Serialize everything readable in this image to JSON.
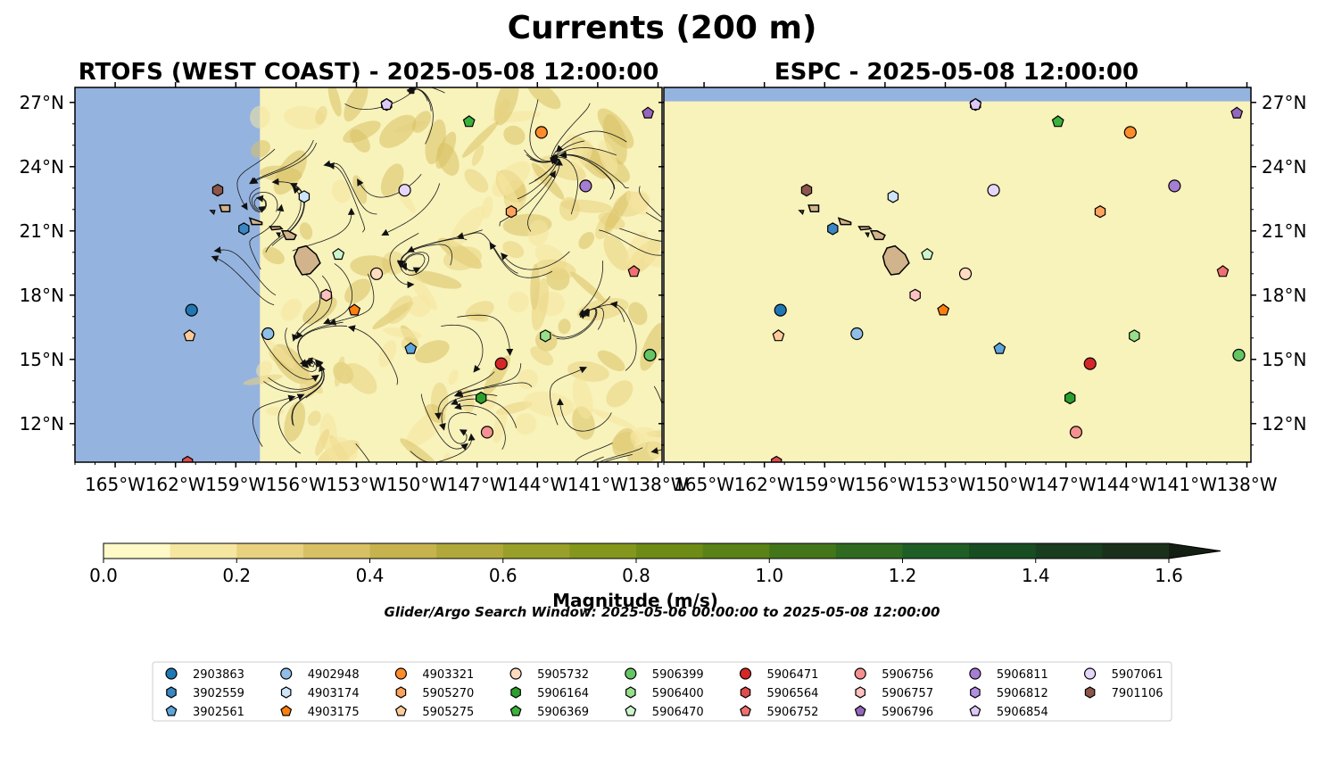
{
  "figure_title": "Currents (200 m)",
  "colors": {
    "land_blue": "#95b3df",
    "ocean_cream": "#f8f2bb",
    "island_fill": "#d2b48c",
    "streamline": "#1a1a1a"
  },
  "chart_data": [
    {
      "type": "heatmap",
      "name": "rtofs-panel",
      "title": "RTOFS (WEST COAST) - 2025-05-08 12:00:00",
      "xlim": [
        -167,
        -137.8
      ],
      "ylim": [
        10.2,
        27.7
      ],
      "data_lon_range": [
        -157.8,
        -137.8
      ],
      "xticks": [
        -165,
        -162,
        -159,
        -156,
        -153,
        -150,
        -147,
        -144,
        -141,
        -138
      ],
      "xtick_labels": [
        "165°W",
        "162°W",
        "159°W",
        "156°W",
        "153°W",
        "150°W",
        "147°W",
        "144°W",
        "141°W",
        "138°W"
      ],
      "yticks": [
        12,
        15,
        18,
        21,
        24,
        27
      ],
      "ytick_labels": [
        "12°N",
        "15°N",
        "18°N",
        "21°N",
        "24°N",
        "27°N"
      ],
      "ytick_side": "left",
      "streamlines": true
    },
    {
      "type": "heatmap",
      "name": "espc-panel",
      "title": "ESPC - 2025-05-08 12:00:00",
      "xlim": [
        -167,
        -137.8
      ],
      "ylim": [
        10.2,
        27.7
      ],
      "data_lat_top": 27.05,
      "xticks": [
        -165,
        -162,
        -159,
        -156,
        -153,
        -150,
        -147,
        -144,
        -141,
        -138
      ],
      "xtick_labels": [
        "165°W",
        "162°W",
        "159°W",
        "156°W",
        "153°W",
        "150°W",
        "147°W",
        "144°W",
        "141°W",
        "138°W"
      ],
      "yticks": [
        12,
        15,
        18,
        21,
        24,
        27
      ],
      "ytick_labels": [
        "12°N",
        "15°N",
        "18°N",
        "21°N",
        "24°N",
        "27°N"
      ],
      "ytick_side": "right",
      "streamlines": false
    }
  ],
  "colorbar": {
    "label": "Magnitude (m/s)",
    "min": 0.0,
    "max": 1.6,
    "extend": "max",
    "ticks": [
      0.0,
      0.2,
      0.4,
      0.6,
      0.8,
      1.0,
      1.2,
      1.4,
      1.6
    ],
    "tick_labels": [
      "0.0",
      "0.2",
      "0.4",
      "0.6",
      "0.8",
      "1.0",
      "1.2",
      "1.4",
      "1.6"
    ],
    "bins": [
      "#fffac7",
      "#f5e6a0",
      "#e8d27f",
      "#d8c165",
      "#c6b34e",
      "#b1a83c",
      "#99a02a",
      "#84971c",
      "#6e8c15",
      "#5a8216",
      "#437619",
      "#2f6a20",
      "#1f5e25",
      "#184d22",
      "#183d1f",
      "#1b301b"
    ],
    "extend_color": "#131f12"
  },
  "search_window_note": "Glider/Argo Search Window: 2025-05-06 00:00:00 to 2025-05-08 12:00:00",
  "legend": {
    "columns": 9,
    "placement": "bottom-center"
  },
  "floats": [
    {
      "id": "2903863",
      "marker": "circle",
      "color": "#1f77b4",
      "lon": -161.2,
      "lat": 17.3
    },
    {
      "id": "3902559",
      "marker": "hexagon",
      "color": "#3a87c2",
      "lon": -158.6,
      "lat": 21.1
    },
    {
      "id": "3902561",
      "marker": "pentagon",
      "color": "#5ea5dc",
      "lon": -150.3,
      "lat": 15.5
    },
    {
      "id": "4902948",
      "marker": "circle",
      "color": "#8fbfe8",
      "lon": -157.4,
      "lat": 16.2
    },
    {
      "id": "4903174",
      "marker": "hexagon",
      "color": "#cde5f7",
      "lon": -155.6,
      "lat": 22.6
    },
    {
      "id": "4903175",
      "marker": "pentagon",
      "color": "#ff7f0e",
      "lon": -153.1,
      "lat": 17.3
    },
    {
      "id": "4903321",
      "marker": "circle",
      "color": "#ff8c2a",
      "lon": -143.8,
      "lat": 25.6
    },
    {
      "id": "5905270",
      "marker": "hexagon",
      "color": "#ffa25c",
      "lon": -145.3,
      "lat": 21.9
    },
    {
      "id": "5905275",
      "marker": "pentagon",
      "color": "#ffcc99",
      "lon": -161.3,
      "lat": 16.1
    },
    {
      "id": "5905732",
      "marker": "circle",
      "color": "#ffdcc0",
      "lon": -152.0,
      "lat": 19.0
    },
    {
      "id": "5906164",
      "marker": "hexagon",
      "color": "#2ca02c",
      "lon": -146.8,
      "lat": 13.2
    },
    {
      "id": "5906369",
      "marker": "pentagon",
      "color": "#3bb23b",
      "lon": -147.4,
      "lat": 26.1
    },
    {
      "id": "5906399",
      "marker": "circle",
      "color": "#63c663",
      "lon": -138.4,
      "lat": 15.2
    },
    {
      "id": "5906400",
      "marker": "hexagon",
      "color": "#98df8a",
      "lon": -143.6,
      "lat": 16.1
    },
    {
      "id": "5906470",
      "marker": "pentagon",
      "color": "#cdf5cd",
      "lon": -153.9,
      "lat": 19.9
    },
    {
      "id": "5906471",
      "marker": "circle",
      "color": "#d62728",
      "lon": -145.8,
      "lat": 14.8
    },
    {
      "id": "5906564",
      "marker": "hexagon",
      "color": "#e04b4b",
      "lon": -161.4,
      "lat": 10.2
    },
    {
      "id": "5906752",
      "marker": "pentagon",
      "color": "#f07070",
      "lon": -139.2,
      "lat": 19.1
    },
    {
      "id": "5906756",
      "marker": "circle",
      "color": "#f59090",
      "lon": -146.5,
      "lat": 11.6
    },
    {
      "id": "5906757",
      "marker": "hexagon",
      "color": "#ffc0c0",
      "lon": -154.5,
      "lat": 18.0
    },
    {
      "id": "5906796",
      "marker": "pentagon",
      "color": "#9467bd",
      "lon": -138.5,
      "lat": 26.5
    },
    {
      "id": "5906811",
      "marker": "circle",
      "color": "#a57dd2",
      "lon": -141.6,
      "lat": 23.1
    },
    {
      "id": "5906812",
      "marker": "hexagon",
      "color": "#b38ee0",
      "lon": -151.5,
      "lat": 26.9
    },
    {
      "id": "5906854",
      "marker": "pentagon",
      "color": "#dcc9f5",
      "lon": -151.5,
      "lat": 26.9
    },
    {
      "id": "5907061",
      "marker": "circle",
      "color": "#e6d6fa",
      "lon": -150.6,
      "lat": 22.9
    },
    {
      "id": "7901106",
      "marker": "hexagon",
      "color": "#8c564b",
      "lon": -159.9,
      "lat": 22.9
    }
  ]
}
